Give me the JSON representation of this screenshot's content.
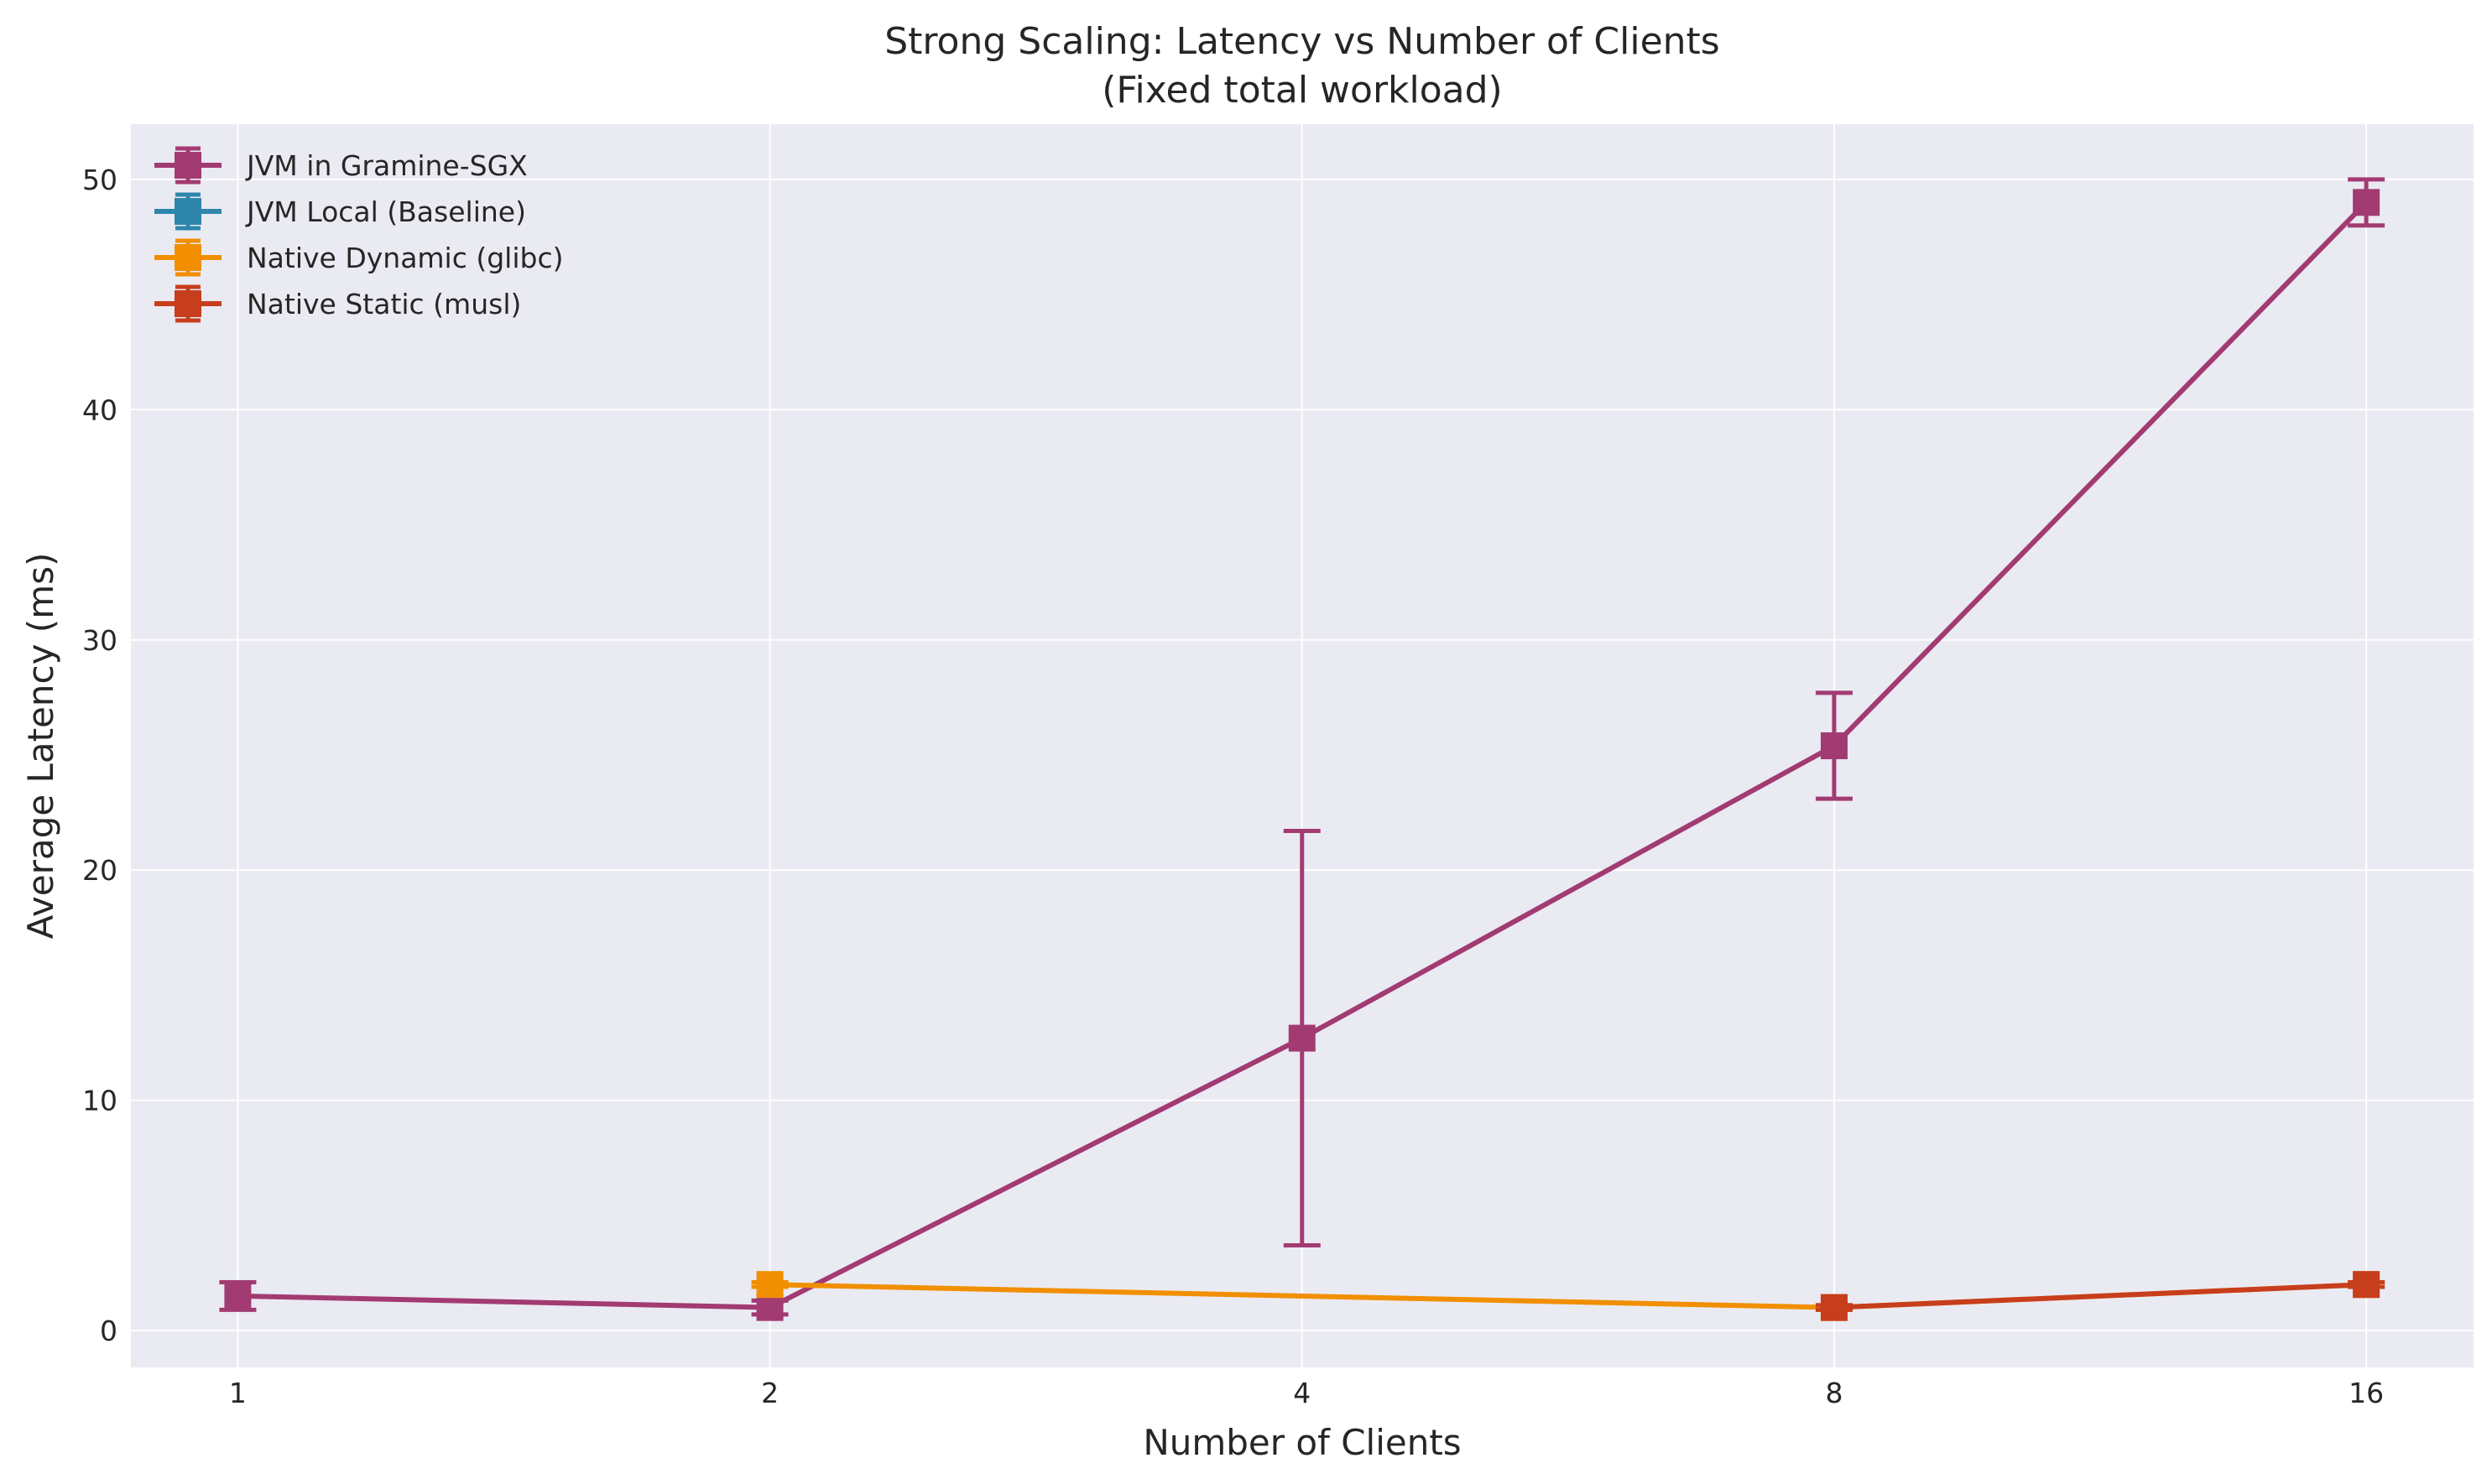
{
  "chart_data": {
    "type": "line",
    "title": "Strong Scaling: Latency vs Number of Clients",
    "subtitle": "(Fixed total workload)",
    "xlabel": "Number of Clients",
    "ylabel": "Average Latency (ms)",
    "x_scale": "log2",
    "x_ticks": [
      1,
      2,
      4,
      8,
      16
    ],
    "x_tick_labels": [
      "1",
      "2",
      "4",
      "8",
      "16"
    ],
    "y_ticks": [
      0,
      10,
      20,
      30,
      40,
      50
    ],
    "y_tick_labels": [
      "0",
      "10",
      "20",
      "30",
      "40",
      "50"
    ],
    "xlim": [
      0.87,
      18.4
    ],
    "ylim": [
      -1.6,
      52.4
    ],
    "grid": true,
    "legend_position": "top-left",
    "series": [
      {
        "name": "JVM in Gramine-SGX",
        "color": "#A23B72",
        "x": [
          1,
          2,
          4,
          8,
          16
        ],
        "y": [
          1.5,
          1.0,
          12.7,
          25.4,
          49.0
        ],
        "err": [
          0.6,
          0.3,
          9.0,
          2.3,
          1.0
        ]
      },
      {
        "name": "JVM Local (Baseline)",
        "color": "#2E86AB",
        "x": [],
        "y": [],
        "err": []
      },
      {
        "name": "Native Dynamic (glibc)",
        "color": "#F18F01",
        "x": [
          2,
          8,
          16
        ],
        "y": [
          2.0,
          1.0,
          2.0
        ],
        "err": [
          0.1,
          0.1,
          0.1
        ]
      },
      {
        "name": "Native Static (musl)",
        "color": "#C73E1D",
        "x": [
          8,
          16
        ],
        "y": [
          1.0,
          2.0
        ],
        "err": [
          0.1,
          0.1
        ]
      }
    ]
  }
}
